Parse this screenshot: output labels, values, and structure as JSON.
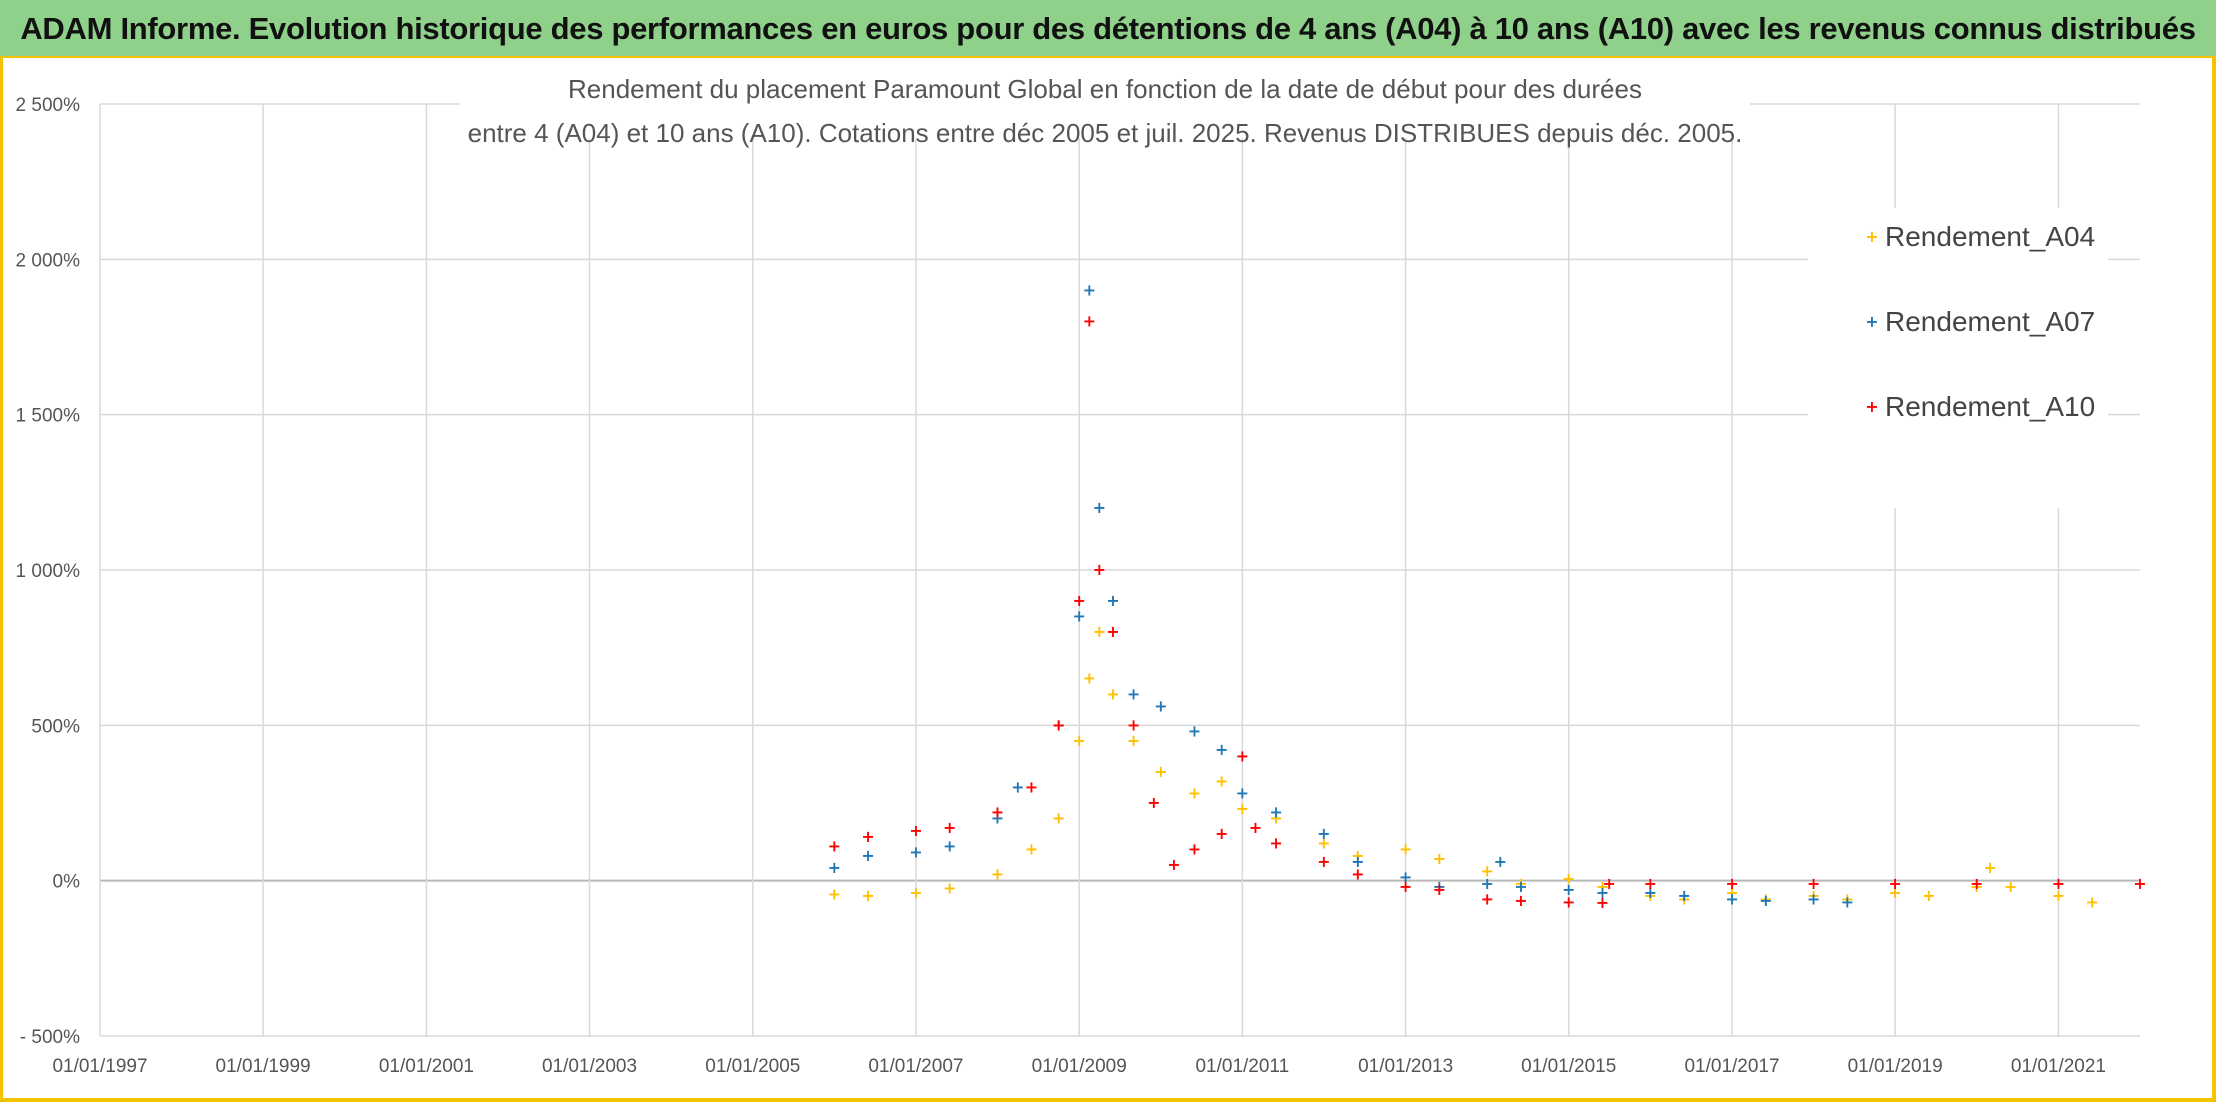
{
  "header": {
    "title": "ADAM Informe. Evolution historique des performances en euros pour des détentions de 4 ans (A04) à 10 ans (A10) avec les revenus connus distribués"
  },
  "chart_data": {
    "type": "scatter",
    "title_lines": [
      "Rendement du placement Paramount Global en fonction de la date de début pour des durées",
      "entre 4 (A04) et 10 ans (A10). Cotations entre déc 2005 et juil. 2025. Revenus DISTRIBUES depuis déc. 2005."
    ],
    "x_axis": {
      "type": "date",
      "range": [
        "1997-01-01",
        "2022-01-01"
      ],
      "tick_labels": [
        "01/01/1997",
        "01/01/1999",
        "01/01/2001",
        "01/01/2003",
        "01/01/2005",
        "01/01/2007",
        "01/01/2009",
        "01/01/2011",
        "01/01/2013",
        "01/01/2015",
        "01/01/2017",
        "01/01/2019",
        "01/01/2021"
      ]
    },
    "y_axis": {
      "range": [
        -500,
        2500
      ],
      "unit": "%",
      "ticks": [
        -500,
        0,
        500,
        1000,
        1500,
        2000,
        2500
      ],
      "tick_labels": [
        "- 500%",
        "0%",
        "500%",
        "1 000%",
        "1 500%",
        "2 000%",
        "2 500%"
      ]
    },
    "grid": true,
    "legend_position": "top-right",
    "marker": "+",
    "series": [
      {
        "name": "Rendement_A04",
        "color": "#ffc000",
        "points": [
          [
            "2006-01-01",
            -45
          ],
          [
            "2006-06-01",
            -50
          ],
          [
            "2007-01-01",
            -40
          ],
          [
            "2007-06-01",
            -25
          ],
          [
            "2008-01-01",
            20
          ],
          [
            "2008-06-01",
            100
          ],
          [
            "2008-10-01",
            200
          ],
          [
            "2009-01-01",
            450
          ],
          [
            "2009-02-15",
            650
          ],
          [
            "2009-04-01",
            800
          ],
          [
            "2009-06-01",
            600
          ],
          [
            "2009-09-01",
            450
          ],
          [
            "2010-01-01",
            350
          ],
          [
            "2010-06-01",
            280
          ],
          [
            "2010-10-01",
            320
          ],
          [
            "2011-01-01",
            230
          ],
          [
            "2011-06-01",
            200
          ],
          [
            "2012-01-01",
            120
          ],
          [
            "2012-06-01",
            80
          ],
          [
            "2013-01-01",
            100
          ],
          [
            "2013-06-01",
            70
          ],
          [
            "2014-01-01",
            30
          ],
          [
            "2014-06-01",
            -10
          ],
          [
            "2015-01-01",
            5
          ],
          [
            "2015-06-01",
            -20
          ],
          [
            "2016-01-01",
            -50
          ],
          [
            "2016-06-01",
            -60
          ],
          [
            "2017-01-01",
            -40
          ],
          [
            "2017-06-01",
            -60
          ],
          [
            "2018-01-01",
            -50
          ],
          [
            "2018-06-01",
            -60
          ],
          [
            "2019-01-01",
            -40
          ],
          [
            "2019-06-01",
            -50
          ],
          [
            "2020-01-01",
            -20
          ],
          [
            "2020-03-01",
            40
          ],
          [
            "2020-06-01",
            -20
          ],
          [
            "2021-01-01",
            -50
          ],
          [
            "2021-06-01",
            -70
          ]
        ]
      },
      {
        "name": "Rendement_A07",
        "color": "#1f77b4",
        "points": [
          [
            "2006-01-01",
            40
          ],
          [
            "2006-06-01",
            80
          ],
          [
            "2007-01-01",
            90
          ],
          [
            "2007-06-01",
            110
          ],
          [
            "2008-01-01",
            200
          ],
          [
            "2008-04-01",
            300
          ],
          [
            "2008-10-01",
            500
          ],
          [
            "2009-01-01",
            850
          ],
          [
            "2009-02-15",
            1900
          ],
          [
            "2009-04-01",
            1200
          ],
          [
            "2009-06-01",
            900
          ],
          [
            "2009-09-01",
            600
          ],
          [
            "2010-01-01",
            560
          ],
          [
            "2010-06-01",
            480
          ],
          [
            "2010-10-01",
            420
          ],
          [
            "2011-01-01",
            280
          ],
          [
            "2011-06-01",
            220
          ],
          [
            "2012-01-01",
            150
          ],
          [
            "2012-06-01",
            60
          ],
          [
            "2013-01-01",
            10
          ],
          [
            "2013-06-01",
            -20
          ],
          [
            "2014-01-01",
            -10
          ],
          [
            "2014-03-01",
            60
          ],
          [
            "2014-06-01",
            -20
          ],
          [
            "2015-01-01",
            -30
          ],
          [
            "2015-06-01",
            -40
          ],
          [
            "2016-01-01",
            -40
          ],
          [
            "2016-06-01",
            -50
          ],
          [
            "2017-01-01",
            -60
          ],
          [
            "2017-06-01",
            -65
          ],
          [
            "2018-01-01",
            -60
          ],
          [
            "2018-06-01",
            -70
          ]
        ]
      },
      {
        "name": "Rendement_A10",
        "color": "#ff0000",
        "points": [
          [
            "2006-01-01",
            110
          ],
          [
            "2006-06-01",
            140
          ],
          [
            "2007-01-01",
            160
          ],
          [
            "2007-06-01",
            170
          ],
          [
            "2008-01-01",
            220
          ],
          [
            "2008-06-01",
            300
          ],
          [
            "2008-10-01",
            500
          ],
          [
            "2009-01-01",
            900
          ],
          [
            "2009-02-15",
            1800
          ],
          [
            "2009-04-01",
            1000
          ],
          [
            "2009-06-01",
            800
          ],
          [
            "2009-09-01",
            500
          ],
          [
            "2009-12-01",
            250
          ],
          [
            "2010-03-01",
            50
          ],
          [
            "2010-06-01",
            100
          ],
          [
            "2010-10-01",
            150
          ],
          [
            "2011-01-01",
            400
          ],
          [
            "2011-03-01",
            170
          ],
          [
            "2011-06-01",
            120
          ],
          [
            "2012-01-01",
            60
          ],
          [
            "2012-06-01",
            20
          ],
          [
            "2013-01-01",
            -20
          ],
          [
            "2013-06-01",
            -30
          ],
          [
            "2014-01-01",
            -60
          ],
          [
            "2014-06-01",
            -65
          ],
          [
            "2015-01-01",
            -70
          ],
          [
            "2015-06-01",
            -72
          ],
          [
            "2015-07-01",
            -10
          ],
          [
            "2016-01-01",
            -10
          ],
          [
            "2017-01-01",
            -10
          ],
          [
            "2018-01-01",
            -10
          ],
          [
            "2019-01-01",
            -10
          ],
          [
            "2020-01-01",
            -10
          ],
          [
            "2021-01-01",
            -10
          ],
          [
            "2022-01-01",
            -10
          ]
        ]
      }
    ]
  }
}
